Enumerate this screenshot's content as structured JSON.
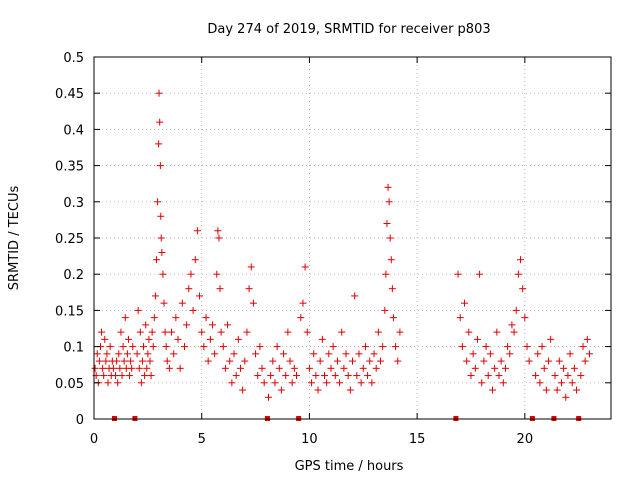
{
  "chart_data": {
    "type": "scatter",
    "title": "Day 274 of 2019, SRMTID for receiver p803",
    "xlabel": "GPS time / hours",
    "ylabel": "SRMTID / TECUs",
    "xlim": [
      0,
      24
    ],
    "ylim": [
      0,
      0.5
    ],
    "xticks": [
      0,
      5,
      10,
      15,
      20
    ],
    "yticks": [
      0,
      0.05,
      0.1,
      0.15,
      0.2,
      0.25,
      0.3,
      0.35,
      0.4,
      0.45,
      0.5
    ],
    "xtick_labels": [
      "0",
      "5",
      "10",
      "15",
      "20"
    ],
    "ytick_labels": [
      "0",
      "0.05",
      "0.1",
      "0.15",
      "0.2",
      "0.25",
      "0.3",
      "0.35",
      "0.4",
      "0.45",
      "0.5"
    ],
    "grid": true,
    "marker": "plus",
    "color": "#e00000",
    "baseline_markers_x": [
      0.95,
      1.9,
      8.05,
      9.5,
      16.8,
      20.35,
      21.35,
      22.5
    ],
    "series": [
      {
        "name": "SRMTID",
        "x": [
          0.05,
          0.1,
          0.15,
          0.2,
          0.25,
          0.3,
          0.35,
          0.4,
          0.45,
          0.5,
          0.55,
          0.6,
          0.65,
          0.7,
          0.75,
          0.8,
          0.85,
          0.9,
          1.0,
          1.05,
          1.1,
          1.15,
          1.2,
          1.25,
          1.3,
          1.35,
          1.4,
          1.45,
          1.5,
          1.55,
          1.6,
          1.65,
          1.7,
          1.75,
          1.8,
          2.0,
          2.05,
          2.1,
          2.15,
          2.2,
          2.25,
          2.3,
          2.35,
          2.4,
          2.45,
          2.5,
          2.55,
          2.6,
          2.65,
          2.7,
          2.75,
          2.8,
          2.85,
          2.9,
          2.95,
          3.0,
          3.02,
          3.05,
          3.08,
          3.1,
          3.12,
          3.15,
          3.2,
          3.25,
          3.3,
          3.35,
          3.4,
          3.5,
          3.6,
          3.7,
          3.8,
          3.9,
          4.0,
          4.1,
          4.2,
          4.3,
          4.4,
          4.5,
          4.6,
          4.7,
          4.8,
          4.9,
          5.0,
          5.1,
          5.2,
          5.3,
          5.4,
          5.5,
          5.6,
          5.7,
          5.75,
          5.8,
          5.85,
          5.9,
          6.0,
          6.1,
          6.2,
          6.3,
          6.4,
          6.5,
          6.6,
          6.7,
          6.8,
          6.9,
          7.0,
          7.1,
          7.2,
          7.3,
          7.4,
          7.5,
          7.6,
          7.7,
          7.8,
          7.9,
          8.1,
          8.2,
          8.3,
          8.4,
          8.5,
          8.6,
          8.7,
          8.8,
          8.9,
          9.0,
          9.1,
          9.2,
          9.3,
          9.4,
          9.6,
          9.7,
          9.8,
          9.9,
          10.0,
          10.1,
          10.2,
          10.3,
          10.4,
          10.5,
          10.6,
          10.7,
          10.8,
          10.9,
          11.0,
          11.1,
          11.2,
          11.3,
          11.4,
          11.5,
          11.6,
          11.7,
          11.8,
          11.9,
          12.0,
          12.1,
          12.2,
          12.3,
          12.4,
          12.5,
          12.6,
          12.7,
          12.8,
          12.9,
          13.0,
          13.1,
          13.2,
          13.3,
          13.4,
          13.5,
          13.55,
          13.6,
          13.65,
          13.7,
          13.75,
          13.8,
          13.85,
          13.9,
          14.0,
          14.1,
          14.2,
          16.9,
          17.0,
          17.1,
          17.2,
          17.3,
          17.4,
          17.5,
          17.6,
          17.7,
          17.8,
          17.9,
          18.0,
          18.1,
          18.2,
          18.3,
          18.4,
          18.5,
          18.6,
          18.7,
          18.8,
          18.9,
          19.0,
          19.1,
          19.2,
          19.3,
          19.4,
          19.5,
          19.6,
          19.7,
          19.8,
          19.9,
          20.0,
          20.1,
          20.2,
          20.5,
          20.6,
          20.7,
          20.8,
          20.9,
          21.0,
          21.1,
          21.2,
          21.4,
          21.5,
          21.6,
          21.7,
          21.8,
          21.9,
          22.0,
          22.1,
          22.2,
          22.3,
          22.4,
          22.6,
          22.7,
          22.8,
          22.9,
          23.0
        ],
        "y": [
          0.07,
          0.06,
          0.09,
          0.05,
          0.08,
          0.1,
          0.12,
          0.07,
          0.06,
          0.11,
          0.08,
          0.09,
          0.05,
          0.07,
          0.1,
          0.06,
          0.08,
          0.07,
          0.06,
          0.08,
          0.05,
          0.09,
          0.07,
          0.12,
          0.06,
          0.1,
          0.08,
          0.14,
          0.07,
          0.09,
          0.11,
          0.06,
          0.08,
          0.07,
          0.1,
          0.09,
          0.15,
          0.07,
          0.12,
          0.05,
          0.08,
          0.1,
          0.06,
          0.13,
          0.07,
          0.09,
          0.11,
          0.08,
          0.06,
          0.12,
          0.1,
          0.14,
          0.17,
          0.22,
          0.3,
          0.38,
          0.45,
          0.41,
          0.35,
          0.28,
          0.25,
          0.23,
          0.2,
          0.16,
          0.12,
          0.1,
          0.08,
          0.07,
          0.12,
          0.09,
          0.14,
          0.11,
          0.07,
          0.16,
          0.1,
          0.13,
          0.18,
          0.2,
          0.15,
          0.22,
          0.26,
          0.17,
          0.12,
          0.1,
          0.14,
          0.08,
          0.11,
          0.13,
          0.09,
          0.2,
          0.26,
          0.25,
          0.18,
          0.12,
          0.1,
          0.07,
          0.13,
          0.08,
          0.05,
          0.09,
          0.06,
          0.11,
          0.07,
          0.04,
          0.08,
          0.12,
          0.18,
          0.21,
          0.16,
          0.09,
          0.06,
          0.1,
          0.07,
          0.05,
          0.03,
          0.06,
          0.08,
          0.05,
          0.1,
          0.07,
          0.04,
          0.09,
          0.06,
          0.12,
          0.08,
          0.05,
          0.07,
          0.06,
          0.14,
          0.16,
          0.21,
          0.12,
          0.07,
          0.05,
          0.09,
          0.06,
          0.04,
          0.08,
          0.11,
          0.06,
          0.05,
          0.09,
          0.07,
          0.1,
          0.06,
          0.08,
          0.05,
          0.12,
          0.07,
          0.09,
          0.06,
          0.04,
          0.08,
          0.17,
          0.06,
          0.09,
          0.05,
          0.07,
          0.1,
          0.06,
          0.08,
          0.05,
          0.09,
          0.07,
          0.12,
          0.08,
          0.1,
          0.15,
          0.2,
          0.27,
          0.32,
          0.3,
          0.25,
          0.22,
          0.18,
          0.14,
          0.1,
          0.08,
          0.12,
          0.2,
          0.14,
          0.1,
          0.16,
          0.08,
          0.12,
          0.06,
          0.09,
          0.07,
          0.11,
          0.2,
          0.05,
          0.08,
          0.1,
          0.06,
          0.09,
          0.04,
          0.07,
          0.12,
          0.06,
          0.08,
          0.05,
          0.07,
          0.1,
          0.09,
          0.13,
          0.12,
          0.15,
          0.2,
          0.22,
          0.18,
          0.14,
          0.1,
          0.08,
          0.06,
          0.09,
          0.05,
          0.1,
          0.07,
          0.04,
          0.08,
          0.11,
          0.06,
          0.04,
          0.08,
          0.05,
          0.07,
          0.03,
          0.06,
          0.09,
          0.05,
          0.07,
          0.04,
          0.06,
          0.1,
          0.08,
          0.11,
          0.09
        ]
      }
    ]
  }
}
